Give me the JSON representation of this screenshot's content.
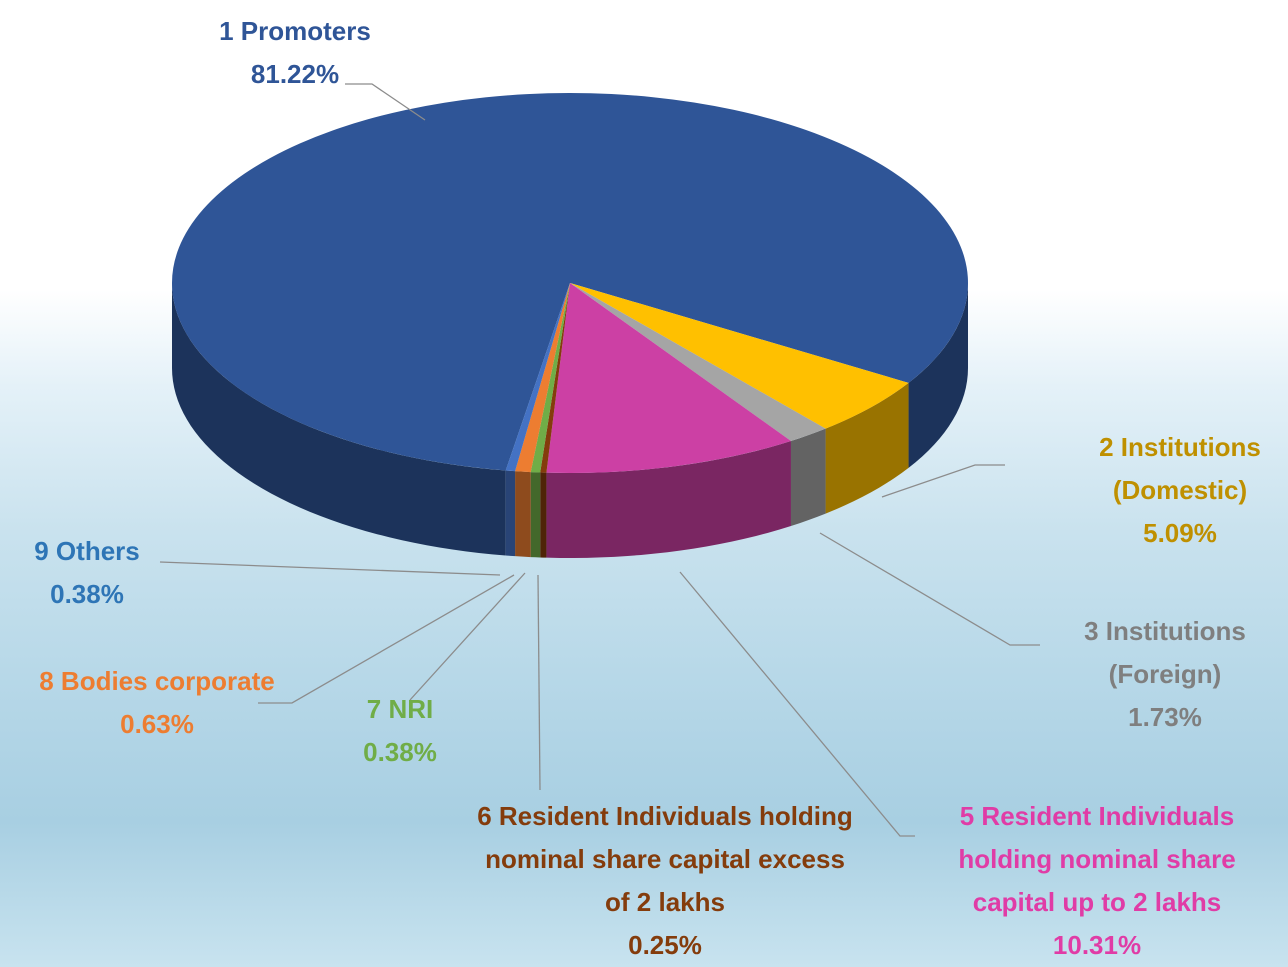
{
  "chart_data": {
    "type": "pie",
    "categories": [
      "1 Promoters",
      "2 Institutions (Domestic)",
      "3 Institutions (Foreign)",
      "5 Resident Individuals holding nominal share capital up to 2 lakhs",
      "6 Resident Individuals holding nominal share capital excess of 2 lakhs",
      "7 NRI",
      "8 Bodies corporate",
      "9 Others"
    ],
    "values": [
      81.22,
      5.09,
      1.73,
      10.31,
      0.25,
      0.38,
      0.63,
      0.38
    ],
    "value_labels": [
      "81.22%",
      "5.09%",
      "1.73%",
      "10.31%",
      "0.25%",
      "0.38%",
      "0.63%",
      "0.38%"
    ],
    "colors": [
      "#2f5597",
      "#ffc000",
      "#a5a5a5",
      "#cc40a4",
      "#843c0c",
      "#70ad47",
      "#ed7d31",
      "#4472c4"
    ],
    "label_colors": [
      "#2f5597",
      "#bf9000",
      "#7f7f7f",
      "#e03ca6",
      "#843c0c",
      "#70ad47",
      "#ed7d31",
      "#2e75b6"
    ]
  }
}
